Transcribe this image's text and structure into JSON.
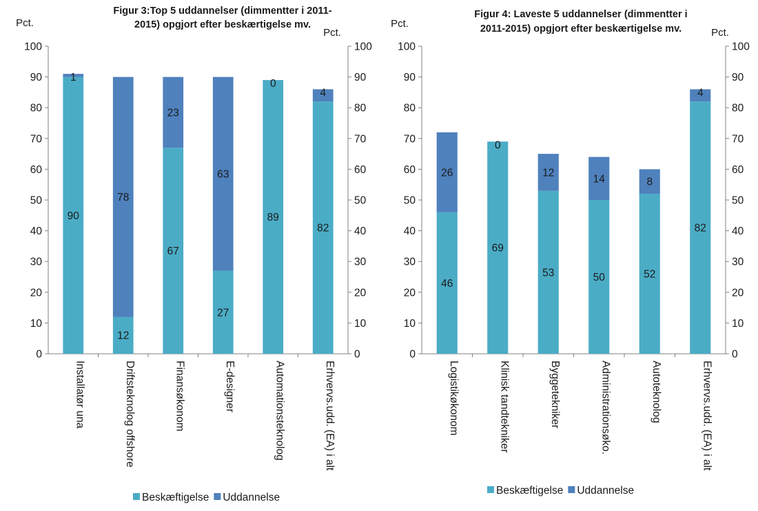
{
  "colors": {
    "employment": "#4BACC6",
    "education": "#4F81BD",
    "axis": "#808080"
  },
  "legend_labels": [
    "Beskæftigelse",
    "Uddannelse"
  ],
  "chart_data": [
    {
      "type": "bar",
      "stacked": true,
      "title_lines": [
        "Figur 3:Top 5 uddannelser (dimmentter i 2011-",
        "2015) opgjort efter beskærtigelse mv."
      ],
      "ylabel_left": "Pct.",
      "ylabel_right": "Pct.",
      "ylim": [
        0,
        100
      ],
      "yticks": [
        0,
        10,
        20,
        30,
        40,
        50,
        60,
        70,
        80,
        90,
        100
      ],
      "legend": "bottom",
      "categories": [
        "Installatør una",
        "Driftsteknolog offshore",
        "Finansøkonom",
        "E-designer",
        "Automationsteknolog",
        "Erhvervs.udd. (EA) i alt"
      ],
      "series": [
        {
          "name": "Beskæftigelse",
          "values": [
            90,
            12,
            67,
            27,
            89,
            82
          ]
        },
        {
          "name": "Uddannelse",
          "values": [
            1,
            78,
            23,
            63,
            0,
            4
          ]
        }
      ]
    },
    {
      "type": "bar",
      "stacked": true,
      "title_lines": [
        "Figur 4: Laveste 5 uddannelser (dimmentter i",
        "2011-2015) opgjort efter beskærtigelse mv."
      ],
      "ylabel_left": "Pct.",
      "ylabel_right": "Pct.",
      "ylim": [
        0,
        100
      ],
      "yticks": [
        0,
        10,
        20,
        30,
        40,
        50,
        60,
        70,
        80,
        90,
        100
      ],
      "legend": "bottom",
      "categories": [
        "Logistikøkonom",
        "Klinisk tandtekniker",
        "Byggetekniker",
        "Administrationsøko.",
        "Autoteknolog",
        "Erhvervs.udd. (EA) i alt"
      ],
      "series": [
        {
          "name": "Beskæftigelse",
          "values": [
            46,
            69,
            53,
            50,
            52,
            82
          ]
        },
        {
          "name": "Uddannelse",
          "values": [
            26,
            0,
            12,
            14,
            8,
            4
          ]
        }
      ]
    }
  ]
}
